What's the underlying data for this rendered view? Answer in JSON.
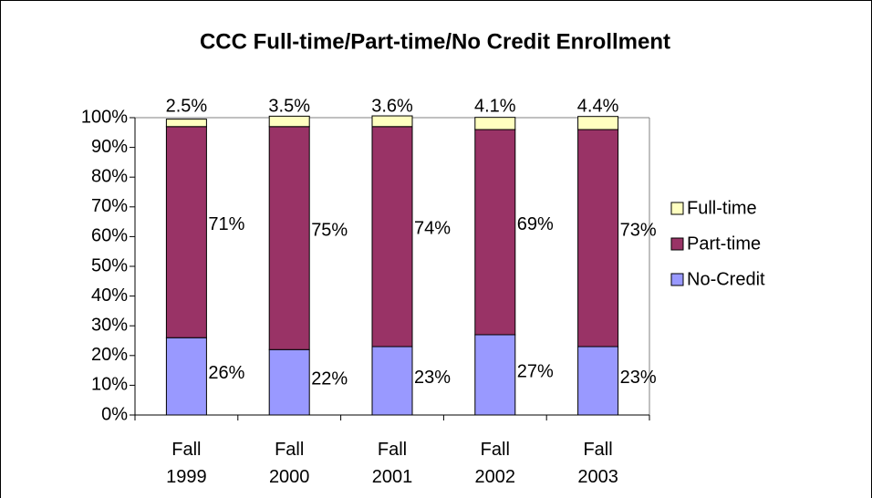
{
  "chart_data": {
    "type": "bar",
    "stacked": true,
    "title": "CCC Full-time/Part-time/No Credit Enrollment",
    "categories": [
      "Fall 1999",
      "Fall 2000",
      "Fall 2001",
      "Fall 2002",
      "Fall 2003"
    ],
    "series": [
      {
        "name": "No-Credit",
        "color": "#9999ff",
        "values": [
          26,
          22,
          23,
          27,
          23
        ],
        "value_labels": [
          "26%",
          "22%",
          "23%",
          "27%",
          "23%"
        ]
      },
      {
        "name": "Part-time",
        "color": "#993366",
        "values": [
          71,
          75,
          74,
          69,
          73
        ],
        "value_labels": [
          "71%",
          "75%",
          "74%",
          "69%",
          "73%"
        ]
      },
      {
        "name": "Full-time",
        "color": "#ffffc0",
        "values": [
          2.5,
          3.5,
          3.6,
          4.1,
          4.4
        ],
        "value_labels": [
          "2.5%",
          "3.5%",
          "3.6%",
          "4.1%",
          "4.4%"
        ]
      }
    ],
    "ylim": [
      0,
      100
    ],
    "yticks": [
      {
        "value": 0,
        "label": "0%"
      },
      {
        "value": 10,
        "label": "10%"
      },
      {
        "value": 20,
        "label": "20%"
      },
      {
        "value": 30,
        "label": "30%"
      },
      {
        "value": 40,
        "label": "40%"
      },
      {
        "value": 50,
        "label": "50%"
      },
      {
        "value": 60,
        "label": "60%"
      },
      {
        "value": 70,
        "label": "70%"
      },
      {
        "value": 80,
        "label": "80%"
      },
      {
        "value": 90,
        "label": "90%"
      },
      {
        "value": 100,
        "label": "100%"
      }
    ],
    "legend": "right"
  }
}
